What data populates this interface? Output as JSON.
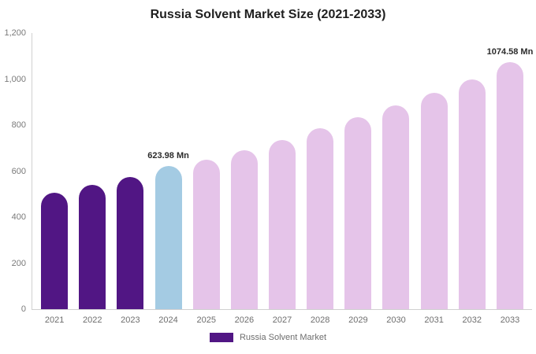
{
  "title": "Russia Solvent Market Size (2021-2033)",
  "legend": {
    "label": "Russia Solvent Market",
    "swatch_color": "#511684"
  },
  "chart_data": {
    "type": "bar",
    "title": "Russia Solvent Market Size (2021-2033)",
    "categories": [
      "2021",
      "2022",
      "2023",
      "2024",
      "2025",
      "2026",
      "2027",
      "2028",
      "2029",
      "2030",
      "2031",
      "2032",
      "2033"
    ],
    "values": [
      505,
      540,
      575,
      623.98,
      650,
      690,
      735,
      785,
      835,
      885,
      940,
      1000,
      1074.58
    ],
    "xlabel": "",
    "ylabel": "",
    "ylim": [
      0,
      1200
    ],
    "yticks": [
      0,
      200,
      400,
      600,
      800,
      1000,
      1200
    ],
    "ytick_labels": [
      "0",
      "200",
      "400",
      "600",
      "800",
      "1,000",
      "1,200"
    ],
    "grid": false,
    "legend_position": "bottom",
    "colors": {
      "historical": "#511684",
      "highlight": "#a4cbe3",
      "forecast": "#e5c4e9"
    },
    "bar_colors": [
      "#511684",
      "#511684",
      "#511684",
      "#a4cbe3",
      "#e5c4e9",
      "#e5c4e9",
      "#e5c4e9",
      "#e5c4e9",
      "#e5c4e9",
      "#e5c4e9",
      "#e5c4e9",
      "#e5c4e9",
      "#e5c4e9"
    ],
    "data_labels": [
      {
        "category": "2024",
        "text": "623.98 Mn"
      },
      {
        "category": "2033",
        "text": "1074.58 Mn"
      }
    ]
  }
}
